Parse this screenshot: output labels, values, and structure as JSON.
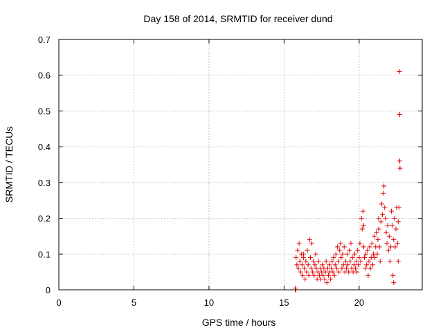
{
  "chart_data": {
    "type": "scatter",
    "title": "Day 158 of 2014, SRMTID for receiver dund",
    "xlabel": "GPS time / hours",
    "ylabel": "SRMTID / TECUs",
    "xlim": [
      0,
      24.2
    ],
    "ylim": [
      0,
      0.7
    ],
    "xticks": [
      0,
      5,
      10,
      15,
      20
    ],
    "yticks": [
      0,
      0.1,
      0.2,
      0.3,
      0.4,
      0.5,
      0.6,
      0.7
    ],
    "xtick_labels": [
      "0",
      "5",
      "10",
      "15",
      "20"
    ],
    "ytick_labels": [
      "0",
      "0.1",
      "0.2",
      "0.3",
      "0.4",
      "0.5",
      "0.6",
      "0.7"
    ],
    "grid": true,
    "marker": "plus",
    "color": "#e00000",
    "series": [
      {
        "name": "SRMTID",
        "points": [
          [
            15.75,
            0.0
          ],
          [
            15.75,
            0.005
          ],
          [
            15.78,
            0.0
          ],
          [
            15.8,
            0.09
          ],
          [
            15.85,
            0.07
          ],
          [
            15.9,
            0.11
          ],
          [
            15.95,
            0.06
          ],
          [
            16.0,
            0.13
          ],
          [
            16.05,
            0.08
          ],
          [
            16.1,
            0.05
          ],
          [
            16.15,
            0.1
          ],
          [
            16.2,
            0.07
          ],
          [
            16.25,
            0.04
          ],
          [
            16.3,
            0.09
          ],
          [
            16.35,
            0.06
          ],
          [
            16.4,
            0.03
          ],
          [
            16.45,
            0.08
          ],
          [
            16.5,
            0.05
          ],
          [
            16.55,
            0.11
          ],
          [
            16.6,
            0.07
          ],
          [
            16.65,
            0.04
          ],
          [
            16.7,
            0.14
          ],
          [
            16.75,
            0.09
          ],
          [
            16.8,
            0.06
          ],
          [
            16.85,
            0.13
          ],
          [
            16.9,
            0.05
          ],
          [
            16.95,
            0.08
          ],
          [
            17.0,
            0.04
          ],
          [
            17.05,
            0.07
          ],
          [
            17.1,
            0.1
          ],
          [
            17.15,
            0.06
          ],
          [
            17.2,
            0.03
          ],
          [
            17.25,
            0.05
          ],
          [
            17.3,
            0.08
          ],
          [
            17.35,
            0.04
          ],
          [
            17.4,
            0.06
          ],
          [
            17.45,
            0.03
          ],
          [
            17.5,
            0.05
          ],
          [
            17.55,
            0.07
          ],
          [
            17.6,
            0.04
          ],
          [
            17.65,
            0.06
          ],
          [
            17.7,
            0.03
          ],
          [
            17.75,
            0.05
          ],
          [
            17.8,
            0.08
          ],
          [
            17.85,
            0.02
          ],
          [
            17.9,
            0.06
          ],
          [
            17.95,
            0.04
          ],
          [
            18.0,
            0.07
          ],
          [
            18.05,
            0.05
          ],
          [
            18.1,
            0.03
          ],
          [
            18.15,
            0.06
          ],
          [
            18.2,
            0.08
          ],
          [
            18.25,
            0.05
          ],
          [
            18.3,
            0.09
          ],
          [
            18.35,
            0.04
          ],
          [
            18.4,
            0.07
          ],
          [
            18.45,
            0.1
          ],
          [
            18.5,
            0.06
          ],
          [
            18.55,
            0.12
          ],
          [
            18.6,
            0.08
          ],
          [
            18.65,
            0.05
          ],
          [
            18.7,
            0.11
          ],
          [
            18.75,
            0.13
          ],
          [
            18.8,
            0.09
          ],
          [
            18.85,
            0.06
          ],
          [
            18.9,
            0.1
          ],
          [
            18.95,
            0.07
          ],
          [
            19.0,
            0.12
          ],
          [
            19.05,
            0.05
          ],
          [
            19.1,
            0.08
          ],
          [
            19.15,
            0.06
          ],
          [
            19.2,
            0.1
          ],
          [
            19.25,
            0.07
          ],
          [
            19.3,
            0.05
          ],
          [
            19.35,
            0.11
          ],
          [
            19.4,
            0.08
          ],
          [
            19.45,
            0.13
          ],
          [
            19.5,
            0.06
          ],
          [
            19.55,
            0.09
          ],
          [
            19.6,
            0.05
          ],
          [
            19.65,
            0.07
          ],
          [
            19.7,
            0.1
          ],
          [
            19.75,
            0.06
          ],
          [
            19.8,
            0.08
          ],
          [
            19.85,
            0.05
          ],
          [
            19.9,
            0.11
          ],
          [
            19.95,
            0.07
          ],
          [
            20.0,
            0.09
          ],
          [
            20.05,
            0.13
          ],
          [
            20.1,
            0.08
          ],
          [
            20.15,
            0.2
          ],
          [
            20.2,
            0.17
          ],
          [
            20.25,
            0.22
          ],
          [
            20.3,
            0.12
          ],
          [
            20.35,
            0.09
          ],
          [
            20.4,
            0.06
          ],
          [
            20.45,
            0.1
          ],
          [
            20.5,
            0.07
          ],
          [
            20.55,
            0.11
          ],
          [
            20.6,
            0.04
          ],
          [
            20.65,
            0.08
          ],
          [
            20.7,
            0.12
          ],
          [
            20.75,
            0.06
          ],
          [
            20.8,
            0.09
          ],
          [
            20.85,
            0.13
          ],
          [
            20.9,
            0.07
          ],
          [
            20.95,
            0.1
          ],
          [
            21.0,
            0.15
          ],
          [
            21.05,
            0.09
          ],
          [
            21.1,
            0.12
          ],
          [
            21.15,
            0.16
          ],
          [
            21.2,
            0.1
          ],
          [
            21.25,
            0.14
          ],
          [
            21.3,
            0.17
          ],
          [
            21.35,
            0.12
          ],
          [
            21.4,
            0.08
          ],
          [
            21.45,
            0.19
          ],
          [
            21.5,
            0.24
          ],
          [
            21.55,
            0.21
          ],
          [
            21.6,
            0.27
          ],
          [
            21.65,
            0.29
          ],
          [
            21.7,
            0.23
          ],
          [
            21.75,
            0.2
          ],
          [
            21.8,
            0.16
          ],
          [
            21.85,
            0.13
          ],
          [
            21.9,
            0.18
          ],
          [
            21.95,
            0.11
          ],
          [
            22.0,
            0.15
          ],
          [
            22.05,
            0.08
          ],
          [
            22.1,
            0.12
          ],
          [
            22.15,
            0.22
          ],
          [
            22.2,
            0.18
          ],
          [
            22.25,
            0.04
          ],
          [
            22.3,
            0.14
          ],
          [
            22.35,
            0.2
          ],
          [
            22.4,
            0.12
          ],
          [
            22.45,
            0.17
          ],
          [
            22.5,
            0.23
          ],
          [
            22.55,
            0.13
          ],
          [
            22.6,
            0.19
          ],
          [
            22.65,
            0.23
          ],
          [
            22.7,
            0.36
          ],
          [
            22.72,
            0.34
          ],
          [
            22.68,
            0.61
          ],
          [
            22.7,
            0.49
          ],
          [
            22.6,
            0.08
          ],
          [
            22.3,
            0.02
          ],
          [
            21.3,
            0.2
          ],
          [
            20.3,
            0.18
          ],
          [
            16.3,
            0.1
          ]
        ]
      }
    ]
  }
}
